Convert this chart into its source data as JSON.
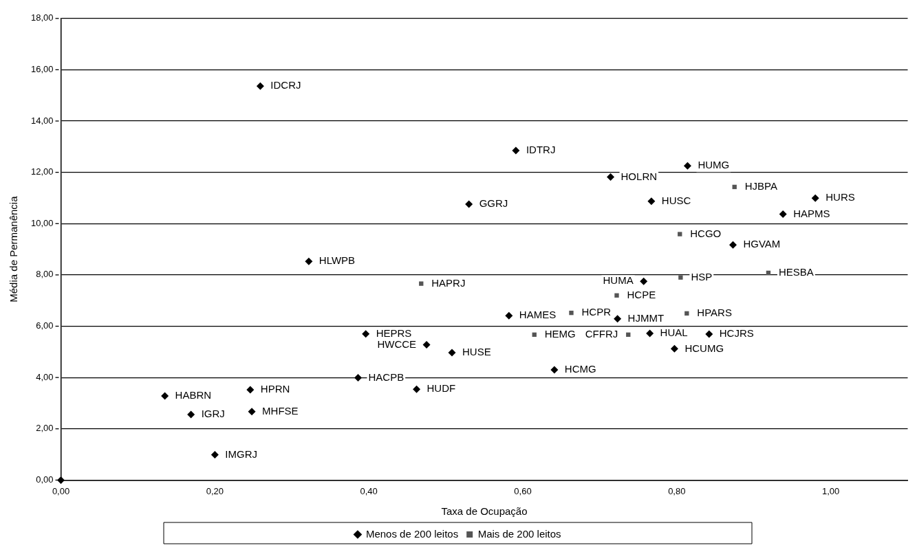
{
  "chart_data": {
    "type": "scatter",
    "xlabel": "Taxa de Ocupação",
    "ylabel": "Média de Permanência",
    "xlim": [
      0,
      1.1
    ],
    "ylim": [
      0,
      18
    ],
    "xticks": [
      {
        "value": 0,
        "label": "0,00"
      },
      {
        "value": 0.2,
        "label": "0,20"
      },
      {
        "value": 0.4,
        "label": "0,40"
      },
      {
        "value": 0.6,
        "label": "0,60"
      },
      {
        "value": 0.8,
        "label": "0,80"
      },
      {
        "value": 1,
        "label": "1,00"
      }
    ],
    "yticks": [
      {
        "value": 0,
        "label": "0,00"
      },
      {
        "value": 2,
        "label": "2,00"
      },
      {
        "value": 4,
        "label": "4,00"
      },
      {
        "value": 6,
        "label": "6,00"
      },
      {
        "value": 8,
        "label": "8,00"
      },
      {
        "value": 10,
        "label": "10,00"
      },
      {
        "value": 12,
        "label": "12,00"
      },
      {
        "value": 14,
        "label": "14,00"
      },
      {
        "value": 16,
        "label": "16,00"
      },
      {
        "value": 18,
        "label": "18,00"
      }
    ],
    "grid": "y",
    "legend": "bottom",
    "series": [
      {
        "name": "Menos de 200 leitos",
        "color": "#000000",
        "marker": "diamond",
        "x": [
          0,
          0.259,
          0.322,
          0.396,
          0.386,
          0.135,
          0.246,
          0.169,
          0.248,
          0.2,
          0.591,
          0.714,
          0.53,
          0.582,
          0.723,
          0.475,
          0.508,
          0.641,
          0.462,
          0.757,
          0.814,
          0.767,
          0.98,
          0.938,
          0.873,
          0.765,
          0.842,
          0.797
        ],
        "values": [
          0,
          15.36,
          8.53,
          5.7,
          3.99,
          3.28,
          3.52,
          2.56,
          2.67,
          0.99,
          12.85,
          11.82,
          10.76,
          6.41,
          6.29,
          5.28,
          4.97,
          4.3,
          3.54,
          7.75,
          12.25,
          10.87,
          10.99,
          10.37,
          9.17,
          5.72,
          5.69,
          5.12
        ]
      },
      {
        "name": "Mais de 200 leitos",
        "color": "#555555",
        "marker": "square",
        "x": [
          0.468,
          0.663,
          0.722,
          0.615,
          0.737,
          0.875,
          0.804,
          0.805,
          0.919,
          0.813
        ],
        "values": [
          7.66,
          6.52,
          7.2,
          5.67,
          5.67,
          11.43,
          9.59,
          7.9,
          8.08,
          6.5
        ]
      }
    ],
    "annotations": [
      {
        "text": "IDCRJ",
        "x": 0.259,
        "y": 15.36
      },
      {
        "text": "HLWPB",
        "x": 0.322,
        "y": 8.53
      },
      {
        "text": "HEPRS",
        "x": 0.396,
        "y": 5.7
      },
      {
        "text": "HACPB",
        "x": 0.386,
        "y": 3.99
      },
      {
        "text": "HABRN",
        "x": 0.135,
        "y": 3.28
      },
      {
        "text": "HPRN",
        "x": 0.246,
        "y": 3.52
      },
      {
        "text": "IGRJ",
        "x": 0.169,
        "y": 2.56
      },
      {
        "text": "MHFSE",
        "x": 0.248,
        "y": 2.67
      },
      {
        "text": "IMGRJ",
        "x": 0.2,
        "y": 0.99
      },
      {
        "text": "IDTRJ",
        "x": 0.591,
        "y": 12.85
      },
      {
        "text": "HOLRN",
        "x": 0.714,
        "y": 11.82
      },
      {
        "text": "GGRJ",
        "x": 0.53,
        "y": 10.76
      },
      {
        "text": "HAMES",
        "x": 0.582,
        "y": 6.41
      },
      {
        "text": "HJMMT",
        "x": 0.723,
        "y": 6.29
      },
      {
        "text": "HWCCE",
        "x": 0.475,
        "y": 5.28
      },
      {
        "text": "HUSE",
        "x": 0.508,
        "y": 4.97
      },
      {
        "text": "HCMG",
        "x": 0.641,
        "y": 4.3
      },
      {
        "text": "HUDF",
        "x": 0.462,
        "y": 3.54
      },
      {
        "text": "HUMA",
        "x": 0.757,
        "y": 7.75
      },
      {
        "text": "HUMG",
        "x": 0.814,
        "y": 12.25
      },
      {
        "text": "HUSC",
        "x": 0.767,
        "y": 10.87
      },
      {
        "text": "HURS",
        "x": 0.98,
        "y": 10.99
      },
      {
        "text": "HAPMS",
        "x": 0.938,
        "y": 10.37
      },
      {
        "text": "HGVAM",
        "x": 0.873,
        "y": 9.17
      },
      {
        "text": "HUAL",
        "x": 0.765,
        "y": 5.72
      },
      {
        "text": "HCJRS",
        "x": 0.842,
        "y": 5.69
      },
      {
        "text": "HCUMG",
        "x": 0.797,
        "y": 5.12
      },
      {
        "text": "HAPRJ",
        "x": 0.468,
        "y": 7.66
      },
      {
        "text": "HCPR",
        "x": 0.663,
        "y": 6.52
      },
      {
        "text": "HCPE",
        "x": 0.722,
        "y": 7.2
      },
      {
        "text": "HEMG",
        "x": 0.615,
        "y": 5.67
      },
      {
        "text": "CFFRJ",
        "x": 0.737,
        "y": 5.67
      },
      {
        "text": "HJBPA",
        "x": 0.875,
        "y": 11.43
      },
      {
        "text": "HCGO",
        "x": 0.804,
        "y": 9.59
      },
      {
        "text": "HSP",
        "x": 0.805,
        "y": 7.9
      },
      {
        "text": "HESBA",
        "x": 0.919,
        "y": 8.08
      },
      {
        "text": "HPARS",
        "x": 0.813,
        "y": 6.5
      }
    ]
  }
}
